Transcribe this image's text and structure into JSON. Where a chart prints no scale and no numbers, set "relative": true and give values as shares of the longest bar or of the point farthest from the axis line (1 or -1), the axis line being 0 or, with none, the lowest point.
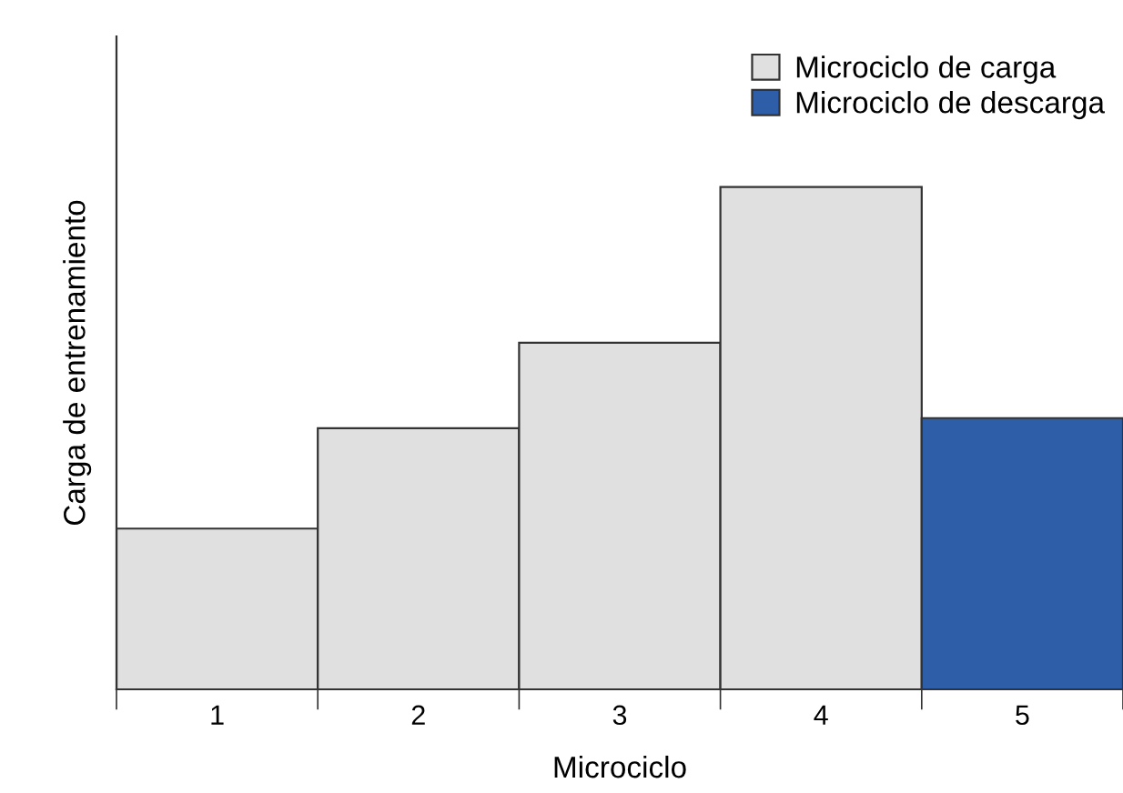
{
  "chart_data": {
    "type": "bar",
    "relative": true,
    "xlabel": "Microciclo",
    "ylabel": "Carga de entrenamiento",
    "categories": [
      "1",
      "2",
      "3",
      "4",
      "5"
    ],
    "legend": "top right",
    "series": [
      {
        "name": "Microciclo de carga",
        "color": "#e0e0e0",
        "values": [
          0.32,
          0.52,
          0.69,
          1,
          null
        ]
      },
      {
        "name": "Microciclo de descarga",
        "color": "#2e5ea8",
        "values": [
          null,
          null,
          null,
          null,
          0.54
        ]
      }
    ]
  }
}
